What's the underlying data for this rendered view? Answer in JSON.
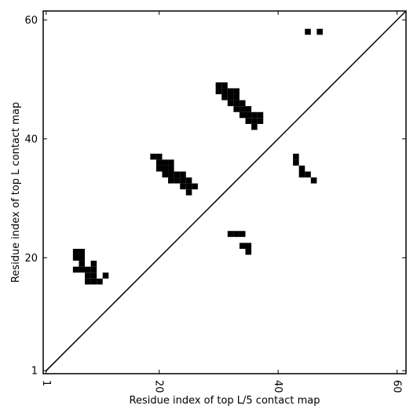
{
  "chart_data": {
    "type": "scatter",
    "xlabel": "Residue index of top L/5 contact map",
    "ylabel": "Residue index of top L contact map",
    "color": "#000000",
    "marker": "square",
    "x": [
      45,
      47,
      30,
      31,
      30,
      31,
      32,
      33,
      31,
      32,
      33,
      32,
      33,
      34,
      33,
      34,
      35,
      34,
      35,
      36,
      37,
      35,
      36,
      37,
      36,
      19,
      20,
      20,
      21,
      22,
      20,
      21,
      22,
      21,
      22,
      23,
      24,
      22,
      23,
      24,
      25,
      24,
      25,
      26,
      25,
      6,
      7,
      6,
      7,
      7,
      9,
      6,
      7,
      8,
      9,
      8,
      9,
      11,
      8,
      9,
      10,
      43,
      43,
      44,
      44,
      45,
      46,
      32,
      33,
      34,
      34,
      35,
      35
    ],
    "y": [
      58,
      58,
      49,
      49,
      48,
      48,
      48,
      48,
      47,
      47,
      47,
      46,
      46,
      46,
      45,
      45,
      45,
      44,
      44,
      44,
      44,
      43,
      43,
      43,
      42,
      37,
      37,
      36,
      36,
      36,
      35,
      35,
      35,
      34,
      34,
      34,
      34,
      33,
      33,
      33,
      33,
      32,
      32,
      32,
      31,
      21,
      21,
      20,
      20,
      19,
      19,
      18,
      18,
      18,
      18,
      17,
      17,
      17,
      16,
      16,
      16,
      37,
      36,
      35,
      34,
      34,
      33,
      24,
      24,
      24,
      22,
      22,
      21
    ],
    "diagonal_x": [
      1,
      61.5
    ],
    "diagonal_y": [
      1,
      61.5
    ],
    "xlim": [
      0.5,
      61.5
    ],
    "ylim": [
      0.5,
      61.5
    ],
    "xticks": [
      1,
      20,
      40,
      60
    ],
    "yticks": [
      1,
      20,
      40,
      60
    ]
  }
}
